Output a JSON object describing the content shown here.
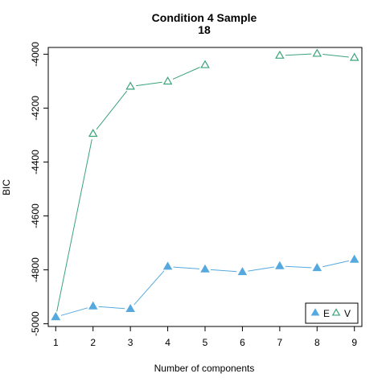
{
  "chart_data": {
    "type": "line",
    "title_lines": [
      "Condition 4 Sample",
      "18"
    ],
    "xlabel": "Number of components",
    "ylabel": "BIC",
    "x": [
      1,
      2,
      3,
      4,
      5,
      6,
      7,
      8,
      9
    ],
    "xlim": [
      0.8,
      9.2
    ],
    "ylim": [
      -5010,
      -3975
    ],
    "yticks": [
      -5000,
      -4800,
      -4600,
      -4400,
      -4200,
      -4000
    ],
    "series": [
      {
        "name": "E",
        "marker": "filled-triangle",
        "color": "#56a9df",
        "values": [
          -4975,
          -4935,
          -4945,
          -4788,
          -4798,
          -4808,
          -4786,
          -4793,
          -4762
        ]
      },
      {
        "name": "V",
        "marker": "open-triangle",
        "color": "#3aa37a",
        "values": [
          -4975,
          -4295,
          -4120,
          -4101,
          -4040,
          null,
          -4005,
          -3998,
          -4013
        ]
      }
    ],
    "legend_position": "bottom-right",
    "grid": false
  }
}
